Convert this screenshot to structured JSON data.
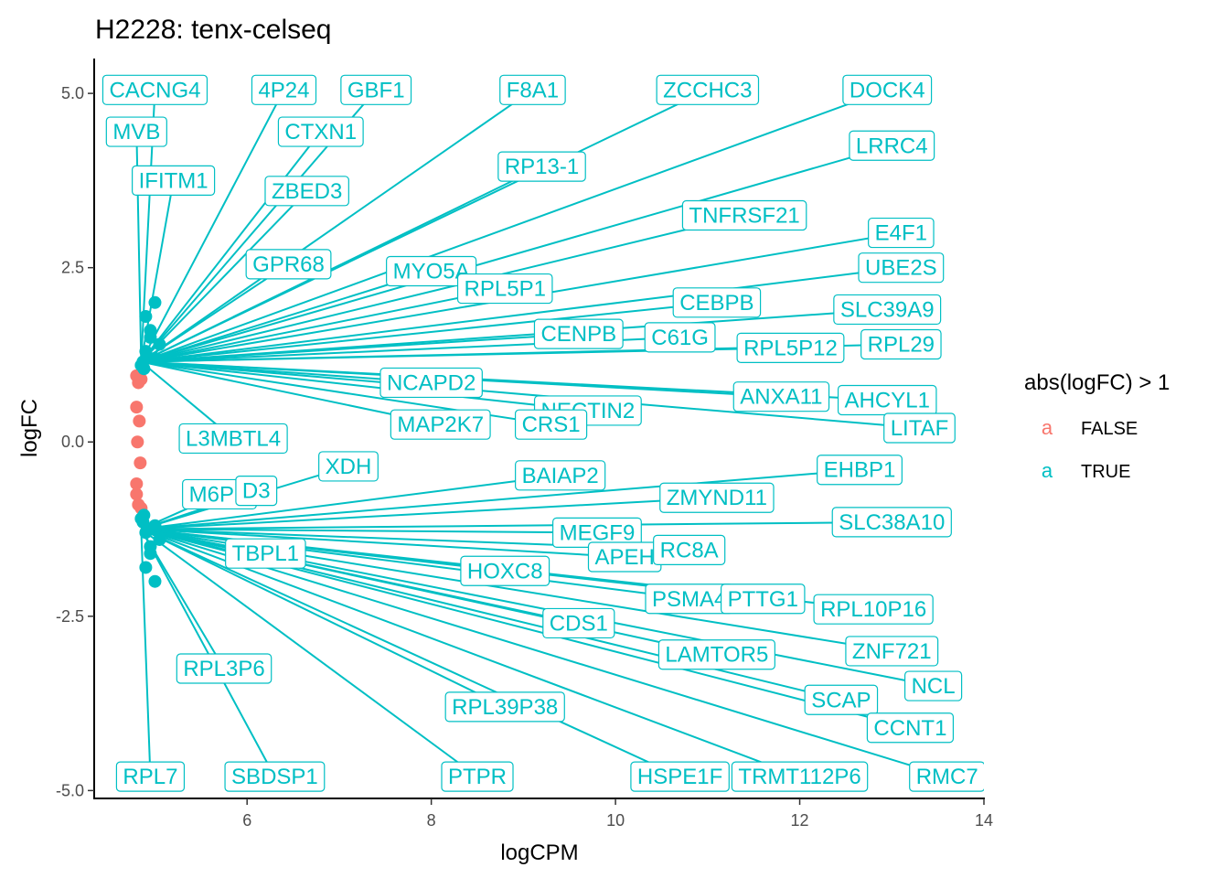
{
  "chart_data": {
    "type": "scatter",
    "title": "H2228: tenx-celseq",
    "xlabel": "logCPM",
    "ylabel": "logFC",
    "xlim": [
      4.35,
      14
    ],
    "ylim": [
      -5.1,
      5.5
    ],
    "x_ticks": [
      6,
      8,
      10,
      12,
      14
    ],
    "y_ticks": [
      -5.0,
      -2.5,
      0.0,
      2.5,
      5.0
    ],
    "x_tick_labels": [
      "6",
      "8",
      "10",
      "12",
      "14"
    ],
    "y_tick_labels": [
      "-5.0",
      "-2.5",
      "0.0",
      "2.5",
      "5.0"
    ],
    "grid": false,
    "legend": {
      "title": "abs(logFC) > 1",
      "position": "right",
      "key_glyph": "a",
      "entries": [
        {
          "label": "FALSE",
          "color": "#f8766d"
        },
        {
          "label": "TRUE",
          "color": "#00bfc4"
        }
      ]
    },
    "series": [
      {
        "name": "FALSE",
        "color": "#f8766d",
        "points": [
          [
            4.8,
            0.95
          ],
          [
            4.82,
            0.85
          ],
          [
            4.85,
            0.9
          ],
          [
            4.8,
            0.5
          ],
          [
            4.83,
            0.3
          ],
          [
            4.81,
            0.0
          ],
          [
            4.84,
            -0.3
          ],
          [
            4.8,
            -0.6
          ],
          [
            4.82,
            -0.9
          ],
          [
            4.85,
            -0.95
          ],
          [
            4.8,
            -0.75
          ]
        ]
      },
      {
        "name": "TRUE",
        "color": "#00bfc4",
        "points": [
          [
            4.85,
            1.1
          ],
          [
            4.9,
            1.3
          ],
          [
            4.95,
            1.5
          ],
          [
            5.0,
            1.2
          ],
          [
            4.88,
            1.05
          ],
          [
            5.05,
            1.4
          ],
          [
            4.9,
            1.8
          ],
          [
            5.0,
            2.0
          ],
          [
            4.95,
            1.6
          ],
          [
            4.87,
            1.15
          ],
          [
            4.85,
            -1.1
          ],
          [
            4.9,
            -1.3
          ],
          [
            4.95,
            -1.5
          ],
          [
            5.0,
            -1.2
          ],
          [
            4.88,
            -1.05
          ],
          [
            5.05,
            -1.4
          ],
          [
            4.9,
            -1.8
          ],
          [
            5.0,
            -2.0
          ],
          [
            4.95,
            -1.6
          ],
          [
            4.87,
            -1.15
          ]
        ]
      }
    ],
    "gene_labels": [
      {
        "label": "CACNG4",
        "x": 5.0,
        "y": 5.05
      },
      {
        "label": "4P24",
        "x": 6.4,
        "y": 5.05
      },
      {
        "label": "GBF1",
        "x": 7.4,
        "y": 5.05
      },
      {
        "label": "F8A1",
        "x": 9.1,
        "y": 5.05
      },
      {
        "label": "ZCCHC3",
        "x": 11.0,
        "y": 5.05
      },
      {
        "label": "DOCK4",
        "x": 12.95,
        "y": 5.05
      },
      {
        "label": "MVB",
        "x": 4.8,
        "y": 4.45
      },
      {
        "label": "CTXN1",
        "x": 6.8,
        "y": 4.45
      },
      {
        "label": "IFITM1",
        "x": 5.2,
        "y": 3.75
      },
      {
        "label": "RP13-1",
        "x": 9.2,
        "y": 3.95
      },
      {
        "label": "LRRC4",
        "x": 13.0,
        "y": 4.25
      },
      {
        "label": "ZBED3",
        "x": 6.65,
        "y": 3.6
      },
      {
        "label": "TNFRSF21",
        "x": 11.4,
        "y": 3.25
      },
      {
        "label": "E4F1",
        "x": 13.1,
        "y": 3.0
      },
      {
        "label": "GPR68",
        "x": 6.45,
        "y": 2.55
      },
      {
        "label": "MYO5A",
        "x": 8.0,
        "y": 2.45
      },
      {
        "label": "UBE2S",
        "x": 13.1,
        "y": 2.5
      },
      {
        "label": "RPL5P1",
        "x": 8.8,
        "y": 2.2
      },
      {
        "label": "CEBPB",
        "x": 11.1,
        "y": 2.0
      },
      {
        "label": "SLC39A9",
        "x": 12.95,
        "y": 1.9
      },
      {
        "label": "CENPB",
        "x": 9.6,
        "y": 1.55
      },
      {
        "label": "C61G",
        "x": 10.7,
        "y": 1.5
      },
      {
        "label": "RPL5P12",
        "x": 11.9,
        "y": 1.35
      },
      {
        "label": "RPL29",
        "x": 13.1,
        "y": 1.4
      },
      {
        "label": "NCAPD2",
        "x": 8.0,
        "y": 0.85
      },
      {
        "label": "ANXA11",
        "x": 11.8,
        "y": 0.65
      },
      {
        "label": "AHCYL1",
        "x": 12.95,
        "y": 0.6
      },
      {
        "label": "NECTIN2",
        "x": 9.7,
        "y": 0.45
      },
      {
        "label": "MAP2K7",
        "x": 8.1,
        "y": 0.25
      },
      {
        "label": "CRS1",
        "x": 9.3,
        "y": 0.25
      },
      {
        "label": "LITAF",
        "x": 13.3,
        "y": 0.2
      },
      {
        "label": "L3MBTL4",
        "x": 5.85,
        "y": 0.05
      },
      {
        "label": "XDH",
        "x": 7.1,
        "y": -0.35
      },
      {
        "label": "EHBP1",
        "x": 12.65,
        "y": -0.4
      },
      {
        "label": "BAIAP2",
        "x": 9.4,
        "y": -0.48
      },
      {
        "label": "M6PR",
        "x": 5.7,
        "y": -0.75
      },
      {
        "label": "D3",
        "x": 6.1,
        "y": -0.7
      },
      {
        "label": "ZMYND11",
        "x": 11.1,
        "y": -0.8
      },
      {
        "label": "SLC38A10",
        "x": 13.0,
        "y": -1.15
      },
      {
        "label": "MEGF9",
        "x": 9.8,
        "y": -1.3
      },
      {
        "label": "TBPL1",
        "x": 6.2,
        "y": -1.6
      },
      {
        "label": "APEH",
        "x": 10.1,
        "y": -1.65
      },
      {
        "label": "RC8A",
        "x": 10.8,
        "y": -1.55
      },
      {
        "label": "HOXC8",
        "x": 8.8,
        "y": -1.85
      },
      {
        "label": "PSMA4",
        "x": 10.8,
        "y": -2.25
      },
      {
        "label": "PTTG1",
        "x": 11.6,
        "y": -2.25
      },
      {
        "label": "RPL10P16",
        "x": 12.8,
        "y": -2.4
      },
      {
        "label": "CDS1",
        "x": 9.6,
        "y": -2.6
      },
      {
        "label": "LAMTOR5",
        "x": 11.1,
        "y": -3.05
      },
      {
        "label": "ZNF721",
        "x": 13.0,
        "y": -3.0
      },
      {
        "label": "RPL3P6",
        "x": 5.75,
        "y": -3.25
      },
      {
        "label": "RPL39P38",
        "x": 8.8,
        "y": -3.8
      },
      {
        "label": "SCAP",
        "x": 12.45,
        "y": -3.7
      },
      {
        "label": "NCL",
        "x": 13.45,
        "y": -3.5
      },
      {
        "label": "CCNT1",
        "x": 13.2,
        "y": -4.1
      },
      {
        "label": "RPL7",
        "x": 4.95,
        "y": -4.8
      },
      {
        "label": "SBDSP1",
        "x": 6.3,
        "y": -4.8
      },
      {
        "label": "PTPR",
        "x": 8.5,
        "y": -4.8
      },
      {
        "label": "HSPE1F",
        "x": 10.7,
        "y": -4.8
      },
      {
        "label": "TRMT112P6",
        "x": 12.0,
        "y": -4.8
      },
      {
        "label": "RMC7",
        "x": 13.6,
        "y": -4.8
      }
    ]
  }
}
